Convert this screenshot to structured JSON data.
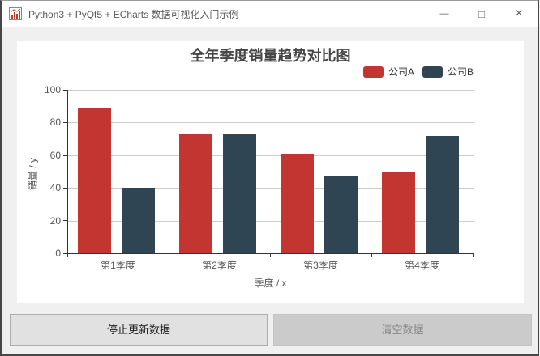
{
  "window": {
    "title": "Python3 + PyQt5 + ECharts 数据可视化入门示例",
    "controls": {
      "minimize_glyph": "—",
      "maximize_glyph": "□",
      "close_glyph": "×"
    }
  },
  "chart_data": {
    "type": "bar",
    "title": "全年季度销量趋势对比图",
    "categories": [
      "第1季度",
      "第2季度",
      "第3季度",
      "第4季度"
    ],
    "series": [
      {
        "name": "公司A",
        "color": "#c23531",
        "values": [
          89,
          73,
          61,
          50
        ]
      },
      {
        "name": "公司B",
        "color": "#2f4554",
        "values": [
          40,
          73,
          47,
          72
        ]
      }
    ],
    "xlabel": "季度 / x",
    "ylabel": "销量 / y",
    "ylim": [
      0,
      100
    ],
    "yticks": [
      0,
      20,
      40,
      60,
      80,
      100
    ],
    "grid": true,
    "legend_position": "top-right"
  },
  "buttons": {
    "stop_update": {
      "label": "停止更新数据",
      "enabled": true
    },
    "clear": {
      "label": "清空数据",
      "enabled": false
    }
  },
  "colors": {
    "company_a": "#c23531",
    "company_b": "#2f4554",
    "window_border": "#474747",
    "titlebar_bg": "#ffffff",
    "client_bg": "#f0f0f0",
    "panel_bg": "#ffffff",
    "grid_line": "#cccccc",
    "axis_line": "#333333",
    "button_bg": "#e1e1e1",
    "button_border": "#adadad",
    "disabled_button_bg": "#cbcbcb",
    "disabled_button_text": "#878787"
  }
}
